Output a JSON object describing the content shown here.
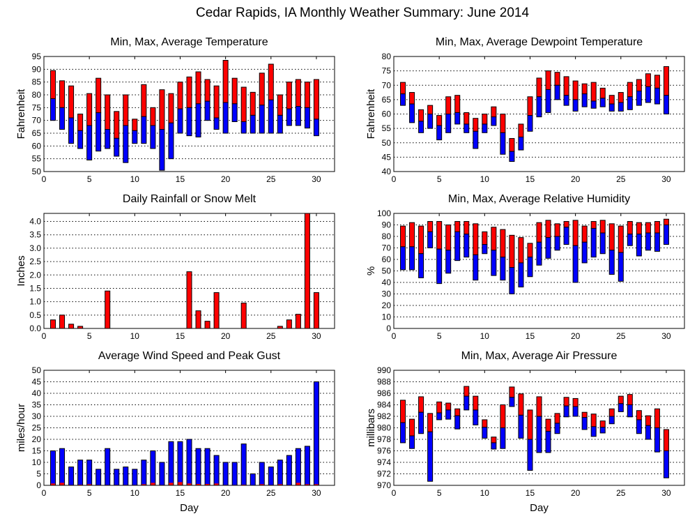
{
  "title": "Cedar Rapids, IA Monthly Weather Summary: June 2014",
  "xlabel": "Day",
  "colors": {
    "max_part": "#ff0000",
    "min_part": "#0000ff"
  },
  "chart_data": [
    {
      "id": "temp",
      "type": "bar",
      "title": "Min, Max, Average Temperature",
      "ylabel": "Fahrenheit",
      "ylim": [
        50,
        95
      ],
      "yticks": [
        50,
        55,
        60,
        65,
        70,
        75,
        80,
        85,
        90,
        95
      ],
      "xlim": [
        0,
        32
      ],
      "xticks": [
        0,
        5,
        10,
        15,
        20,
        25,
        30
      ],
      "min": [
        70,
        66.5,
        61,
        59,
        54.5,
        58,
        59,
        56,
        53.5,
        61,
        61,
        59,
        50.5,
        55,
        65,
        64,
        63.5,
        70,
        66.5,
        65,
        69.5,
        65,
        65,
        65,
        65,
        65,
        68,
        68,
        67,
        64
      ],
      "avg": [
        78.5,
        75,
        71,
        66,
        68,
        73,
        66.5,
        63,
        68,
        66,
        71.5,
        68,
        66.5,
        69,
        74.5,
        75,
        76.5,
        77.5,
        71,
        77,
        76.5,
        69.5,
        72,
        76,
        78,
        72,
        74.5,
        75.5,
        75,
        70.5
      ],
      "max": [
        89.5,
        85.5,
        83.5,
        72.5,
        80.5,
        86.5,
        80,
        73.5,
        80,
        70.5,
        84,
        75,
        82,
        80.5,
        85,
        87,
        89,
        86,
        83.5,
        93.5,
        86.5,
        83,
        81,
        88.5,
        92,
        80,
        85,
        86,
        85,
        86
      ]
    },
    {
      "id": "dewpoint",
      "type": "bar",
      "title": "Min, Max, Average Dewpoint Temperature",
      "ylabel": "Fahrenheit",
      "ylim": [
        40,
        80
      ],
      "yticks": [
        40,
        45,
        50,
        55,
        60,
        65,
        70,
        75,
        80
      ],
      "xlim": [
        0,
        32
      ],
      "xticks": [
        0,
        5,
        10,
        15,
        20,
        25,
        30
      ],
      "min": [
        63,
        57,
        53.5,
        55,
        51,
        53.5,
        56.5,
        53.5,
        48,
        53.5,
        56,
        46,
        43.5,
        47.5,
        54,
        59,
        60.5,
        65,
        63,
        61,
        62.5,
        62,
        62.5,
        61,
        61,
        61.5,
        63,
        64,
        63.5,
        60
      ],
      "avg": [
        67,
        63.5,
        57.5,
        60,
        56,
        60,
        60.5,
        56.5,
        54,
        56.5,
        59,
        53.5,
        47,
        52,
        59.5,
        66,
        68.5,
        70,
        66.5,
        65,
        67,
        64.5,
        65.5,
        63.5,
        64,
        66,
        68,
        69.5,
        69,
        66.5
      ],
      "max": [
        71,
        67.5,
        61.5,
        63,
        59.5,
        66,
        66.5,
        60.5,
        58.5,
        60,
        62.5,
        60,
        51.5,
        56.5,
        66,
        72.5,
        75,
        74.5,
        73,
        71.5,
        70.5,
        71,
        69,
        66.5,
        67.5,
        71,
        72,
        74,
        73.5,
        76.5
      ]
    },
    {
      "id": "rain",
      "type": "bar",
      "title": "Daily Rainfall or Snow Melt",
      "ylabel": "Inches",
      "ylim": [
        0,
        4.3
      ],
      "yticks": [
        "0.0",
        "0.5",
        "1.0",
        "1.5",
        "2.0",
        "2.5",
        "3.0",
        "3.5",
        "4.0"
      ],
      "xlim": [
        0,
        32
      ],
      "xticks": [
        0,
        5,
        10,
        15,
        20,
        25,
        30
      ],
      "values": [
        0.32,
        0.5,
        0.16,
        0.08,
        0,
        0,
        1.4,
        0,
        0,
        0,
        0,
        0,
        0,
        0,
        0,
        2.12,
        0.66,
        0.27,
        1.34,
        0,
        0,
        0.95,
        0,
        0,
        0,
        0.08,
        0.32,
        0.53,
        4.3,
        1.34
      ]
    },
    {
      "id": "humidity",
      "type": "bar",
      "title": "Min, Max, Average Relative Humidity",
      "ylabel": "%",
      "ylim": [
        0,
        100
      ],
      "yticks": [
        0,
        10,
        20,
        30,
        40,
        50,
        60,
        70,
        80,
        90,
        100
      ],
      "xlim": [
        0,
        32
      ],
      "xticks": [
        0,
        5,
        10,
        15,
        20,
        25,
        30
      ],
      "min": [
        51,
        51,
        44,
        70,
        39,
        48,
        59,
        62,
        42,
        65,
        46,
        42,
        30,
        36,
        45,
        55,
        61,
        68,
        73,
        40,
        57,
        62,
        65,
        47,
        41,
        72,
        63,
        68,
        67,
        73
      ],
      "avg": [
        71,
        71,
        65,
        84,
        69,
        68,
        84,
        82,
        64,
        73,
        68,
        62,
        53,
        57,
        62,
        75,
        79,
        80,
        88,
        72,
        75,
        87,
        83,
        68,
        66,
        82,
        82,
        83,
        83,
        90
      ],
      "max": [
        89,
        92,
        89,
        93,
        93,
        90,
        93,
        93,
        91,
        84,
        88,
        86,
        81,
        79,
        74,
        92,
        94,
        91,
        93,
        94,
        89,
        93,
        94,
        91,
        89,
        93,
        92,
        92,
        93,
        95
      ]
    },
    {
      "id": "wind",
      "type": "bar",
      "title": "Average Wind Speed and Peak Gust",
      "ylabel": "miles/hour",
      "ylim": [
        0,
        50
      ],
      "yticks": [
        0,
        5,
        10,
        15,
        20,
        25,
        30,
        35,
        40,
        45,
        50
      ],
      "xlim": [
        0,
        32
      ],
      "xticks": [
        0,
        5,
        10,
        15,
        20,
        25,
        30
      ],
      "gust": [
        15,
        16,
        8,
        11,
        11,
        7,
        16,
        7,
        8,
        7,
        11,
        15,
        10,
        19,
        19,
        20,
        16,
        16,
        13,
        10,
        10,
        18,
        5,
        10,
        8,
        11,
        13,
        16,
        17,
        45
      ],
      "avg": [
        0.8,
        1.1,
        0.2,
        0.3,
        0.5,
        0.2,
        0.2,
        0.2,
        0.2,
        0.2,
        0.5,
        1.1,
        0.2,
        1.1,
        1.4,
        0.8,
        0.6,
        0.6,
        0.8,
        0.2,
        0.2,
        0.3,
        0,
        0.5,
        0.2,
        0.5,
        0.2,
        1.1,
        0.5,
        0.5
      ]
    },
    {
      "id": "pressure",
      "type": "bar",
      "title": "Min, Max, Average Air Pressure",
      "ylabel": "millibars",
      "ylim": [
        970,
        990
      ],
      "yticks": [
        970,
        972,
        974,
        976,
        978,
        980,
        982,
        984,
        986,
        988,
        990
      ],
      "xlim": [
        0,
        32
      ],
      "xticks": [
        0,
        5,
        10,
        15,
        20,
        25,
        30
      ],
      "min": [
        977.4,
        976.4,
        979,
        970.7,
        981.4,
        981.5,
        979.8,
        983.1,
        980.5,
        978.2,
        976.3,
        976.4,
        983.7,
        978.2,
        972.6,
        975.7,
        975.7,
        979,
        981.9,
        982,
        979.7,
        978.5,
        979.1,
        980.7,
        982.8,
        981.9,
        979,
        978,
        975.8,
        971.3
      ],
      "avg": [
        980.9,
        978.6,
        982.7,
        979.3,
        982.6,
        983.1,
        982.1,
        985.5,
        983.1,
        980.1,
        977.4,
        980,
        985.3,
        982.2,
        978,
        982,
        979.4,
        980.8,
        983.8,
        983.7,
        981.8,
        980.2,
        980.1,
        982,
        984.2,
        984,
        981.4,
        980.4,
        980,
        976
      ],
      "max": [
        984.8,
        981.5,
        985.4,
        982.5,
        984.5,
        984.3,
        983.3,
        987.2,
        985.5,
        981.4,
        978.4,
        984,
        987.1,
        985.9,
        983.1,
        985.4,
        981.5,
        982.5,
        985.3,
        985.1,
        982.7,
        982.4,
        981.2,
        983.3,
        985.5,
        985.8,
        983,
        982.1,
        983.3,
        979.7
      ]
    }
  ]
}
